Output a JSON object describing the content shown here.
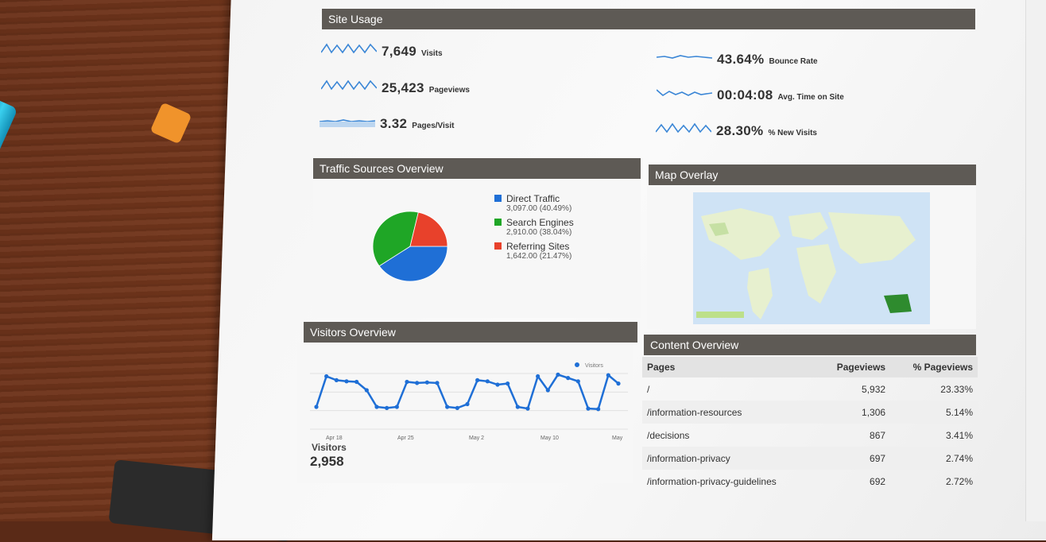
{
  "site_usage": {
    "title": "Site Usage",
    "metrics_left": [
      {
        "value": "7,649",
        "label": "Visits"
      },
      {
        "value": "25,423",
        "label": "Pageviews"
      },
      {
        "value": "3.32",
        "label": "Pages/Visit"
      }
    ],
    "metrics_right": [
      {
        "value": "43.64%",
        "label": "Bounce Rate"
      },
      {
        "value": "00:04:08",
        "label": "Avg. Time on Site"
      },
      {
        "value": "28.30%",
        "label": "% New Visits"
      }
    ]
  },
  "traffic": {
    "title": "Traffic Sources Overview",
    "legend": [
      {
        "name": "Direct Traffic",
        "detail": "3,097.00 (40.49%)",
        "color": "#1f6fd6"
      },
      {
        "name": "Search Engines",
        "detail": "2,910.00 (38.04%)",
        "color": "#1fa626"
      },
      {
        "name": "Referring Sites",
        "detail": "1,642.00 (21.47%)",
        "color": "#e8412b"
      }
    ],
    "percentages": [
      40.49,
      38.04,
      21.47
    ]
  },
  "map": {
    "title": "Map Overlay",
    "land_color": "#e7f0cf",
    "water_color": "#cfe3f5",
    "highlight_color": "#2e8b2e"
  },
  "visitors": {
    "title": "Visitors Overview",
    "legend": "Visitors",
    "x_ticks": [
      "Apr 18",
      "Apr 25",
      "May 2",
      "May 10",
      "May"
    ],
    "series": [
      40,
      95,
      88,
      86,
      85,
      70,
      40,
      38,
      40,
      85,
      83,
      84,
      83,
      40,
      38,
      45,
      88,
      86,
      80,
      82,
      40,
      37,
      95,
      70,
      98,
      92,
      86,
      37,
      36,
      97,
      82
    ],
    "summary_label": "Visitors",
    "summary_value": "2,958"
  },
  "content": {
    "title": "Content Overview",
    "headers": [
      "Pages",
      "Pageviews",
      "% Pageviews"
    ],
    "rows": [
      [
        "/",
        "5,932",
        "23.33%"
      ],
      [
        "/information-resources",
        "1,306",
        "5.14%"
      ],
      [
        "/decisions",
        "867",
        "3.41%"
      ],
      [
        "/information-privacy",
        "697",
        "2.74%"
      ],
      [
        "/information-privacy-guidelines",
        "692",
        "2.72%"
      ]
    ]
  },
  "colors": {
    "header_bar": "#5e5a55",
    "spark_line": "#3a86d6",
    "visitor_line": "#1f6fd6"
  }
}
